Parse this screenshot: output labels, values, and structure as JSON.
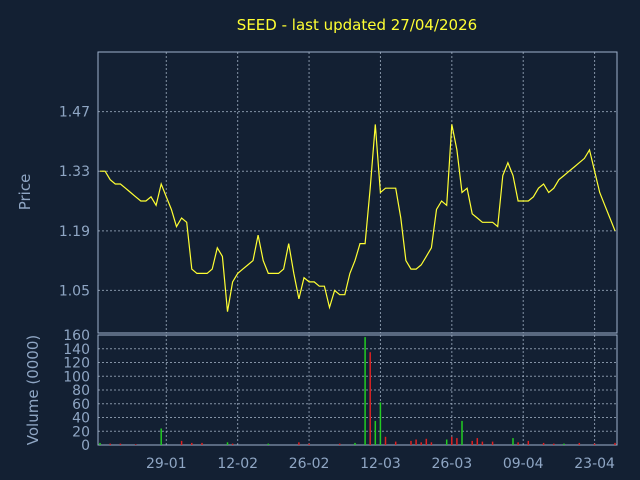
{
  "chart_data": [
    {
      "type": "line",
      "title": "SEED - last updated 27/04/2026",
      "ylabel": "Price",
      "ylim": [
        0.95,
        1.61
      ],
      "yticks": [
        "1.05",
        "1.19",
        "1.33",
        "1.47"
      ],
      "grid": true,
      "line_color": "#ffff33",
      "x": [
        "2026-01-16",
        "2026-01-17",
        "2026-01-18",
        "2026-01-19",
        "2026-01-20",
        "2026-01-21",
        "2026-01-22",
        "2026-01-23",
        "2026-01-24",
        "2026-01-25",
        "2026-01-26",
        "2026-01-27",
        "2026-01-28",
        "2026-01-29",
        "2026-01-30",
        "2026-01-31",
        "2026-02-01",
        "2026-02-02",
        "2026-02-03",
        "2026-02-04",
        "2026-02-05",
        "2026-02-06",
        "2026-02-07",
        "2026-02-08",
        "2026-02-09",
        "2026-02-10",
        "2026-02-11",
        "2026-02-12",
        "2026-02-13",
        "2026-02-14",
        "2026-02-15",
        "2026-02-16",
        "2026-02-17",
        "2026-02-18",
        "2026-02-19",
        "2026-02-20",
        "2026-02-21",
        "2026-02-22",
        "2026-02-23",
        "2026-02-24",
        "2026-02-25",
        "2026-02-26",
        "2026-02-27",
        "2026-02-28",
        "2026-03-01",
        "2026-03-02",
        "2026-03-03",
        "2026-03-04",
        "2026-03-05",
        "2026-03-06",
        "2026-03-07",
        "2026-03-08",
        "2026-03-09",
        "2026-03-10",
        "2026-03-11",
        "2026-03-12",
        "2026-03-13",
        "2026-03-14",
        "2026-03-15",
        "2026-03-16",
        "2026-03-17",
        "2026-03-18",
        "2026-03-19",
        "2026-03-20",
        "2026-03-21",
        "2026-03-22",
        "2026-03-23",
        "2026-03-24",
        "2026-03-25",
        "2026-03-26",
        "2026-03-27",
        "2026-03-28",
        "2026-03-29",
        "2026-03-30",
        "2026-03-31",
        "2026-04-01",
        "2026-04-02",
        "2026-04-03",
        "2026-04-04",
        "2026-04-05",
        "2026-04-06",
        "2026-04-07",
        "2026-04-08",
        "2026-04-09",
        "2026-04-10",
        "2026-04-11",
        "2026-04-12",
        "2026-04-13",
        "2026-04-14",
        "2026-04-15",
        "2026-04-16",
        "2026-04-17",
        "2026-04-18",
        "2026-04-19",
        "2026-04-20",
        "2026-04-21",
        "2026-04-22",
        "2026-04-23",
        "2026-04-24",
        "2026-04-25",
        "2026-04-26",
        "2026-04-27"
      ],
      "y": [
        1.33,
        1.33,
        1.31,
        1.3,
        1.3,
        1.29,
        1.28,
        1.27,
        1.26,
        1.26,
        1.27,
        1.25,
        1.3,
        1.27,
        1.24,
        1.2,
        1.22,
        1.21,
        1.1,
        1.09,
        1.09,
        1.09,
        1.1,
        1.15,
        1.13,
        1.0,
        1.07,
        1.09,
        1.1,
        1.11,
        1.12,
        1.18,
        1.12,
        1.09,
        1.09,
        1.09,
        1.1,
        1.16,
        1.09,
        1.03,
        1.08,
        1.07,
        1.07,
        1.06,
        1.06,
        1.01,
        1.05,
        1.04,
        1.04,
        1.09,
        1.12,
        1.16,
        1.16,
        1.29,
        1.44,
        1.28,
        1.29,
        1.29,
        1.29,
        1.22,
        1.12,
        1.1,
        1.1,
        1.11,
        1.13,
        1.15,
        1.24,
        1.26,
        1.25,
        1.44,
        1.38,
        1.28,
        1.29,
        1.23,
        1.22,
        1.21,
        1.21,
        1.21,
        1.2,
        1.32,
        1.35,
        1.32,
        1.26,
        1.26,
        1.26,
        1.27,
        1.29,
        1.3,
        1.28,
        1.29,
        1.31,
        1.32,
        1.33,
        1.34,
        1.35,
        1.36,
        1.38,
        1.33,
        1.28,
        1.25,
        1.22,
        1.19
      ]
    },
    {
      "type": "bar",
      "ylabel": "Volume (0000)",
      "ylim": [
        0,
        160
      ],
      "yticks": [
        "0",
        "20",
        "40",
        "60",
        "80",
        "100",
        "120",
        "140",
        "160"
      ],
      "grid": true,
      "xticks": [
        "29-01",
        "12-02",
        "26-02",
        "12-03",
        "26-03",
        "09-04",
        "23-04"
      ],
      "xtick_dates": [
        "2026-01-29",
        "2026-02-12",
        "2026-02-26",
        "2026-03-12",
        "2026-03-26",
        "2026-04-09",
        "2026-04-23"
      ],
      "up_color": "#22cc22",
      "down_color": "#dd2222",
      "series": [
        {
          "date": "2026-01-16",
          "value": 3,
          "dir": "up"
        },
        {
          "date": "2026-01-18",
          "value": 2,
          "dir": "down"
        },
        {
          "date": "2026-01-20",
          "value": 2,
          "dir": "down"
        },
        {
          "date": "2026-01-23",
          "value": 1,
          "dir": "down"
        },
        {
          "date": "2026-01-28",
          "value": 24,
          "dir": "up"
        },
        {
          "date": "2026-02-01",
          "value": 6,
          "dir": "down"
        },
        {
          "date": "2026-02-03",
          "value": 3,
          "dir": "down"
        },
        {
          "date": "2026-02-05",
          "value": 3,
          "dir": "down"
        },
        {
          "date": "2026-02-10",
          "value": 4,
          "dir": "up"
        },
        {
          "date": "2026-02-11",
          "value": 2,
          "dir": "down"
        },
        {
          "date": "2026-02-18",
          "value": 2,
          "dir": "up"
        },
        {
          "date": "2026-02-24",
          "value": 4,
          "dir": "down"
        },
        {
          "date": "2026-02-26",
          "value": 2,
          "dir": "down"
        },
        {
          "date": "2026-03-04",
          "value": 2,
          "dir": "down"
        },
        {
          "date": "2026-03-07",
          "value": 3,
          "dir": "up"
        },
        {
          "date": "2026-03-09",
          "value": 157,
          "dir": "up"
        },
        {
          "date": "2026-03-10",
          "value": 135,
          "dir": "down"
        },
        {
          "date": "2026-03-11",
          "value": 35,
          "dir": "up"
        },
        {
          "date": "2026-03-12",
          "value": 62,
          "dir": "up"
        },
        {
          "date": "2026-03-13",
          "value": 12,
          "dir": "down"
        },
        {
          "date": "2026-03-15",
          "value": 5,
          "dir": "down"
        },
        {
          "date": "2026-03-18",
          "value": 6,
          "dir": "down"
        },
        {
          "date": "2026-03-19",
          "value": 8,
          "dir": "down"
        },
        {
          "date": "2026-03-20",
          "value": 4,
          "dir": "down"
        },
        {
          "date": "2026-03-21",
          "value": 9,
          "dir": "down"
        },
        {
          "date": "2026-03-22",
          "value": 4,
          "dir": "down"
        },
        {
          "date": "2026-03-25",
          "value": 8,
          "dir": "up"
        },
        {
          "date": "2026-03-26",
          "value": 12,
          "dir": "down"
        },
        {
          "date": "2026-03-27",
          "value": 10,
          "dir": "down"
        },
        {
          "date": "2026-03-28",
          "value": 35,
          "dir": "up"
        },
        {
          "date": "2026-03-30",
          "value": 6,
          "dir": "down"
        },
        {
          "date": "2026-03-31",
          "value": 10,
          "dir": "down"
        },
        {
          "date": "2026-04-01",
          "value": 5,
          "dir": "down"
        },
        {
          "date": "2026-04-03",
          "value": 5,
          "dir": "down"
        },
        {
          "date": "2026-04-07",
          "value": 10,
          "dir": "up"
        },
        {
          "date": "2026-04-08",
          "value": 4,
          "dir": "down"
        },
        {
          "date": "2026-04-10",
          "value": 6,
          "dir": "down"
        },
        {
          "date": "2026-04-13",
          "value": 3,
          "dir": "down"
        },
        {
          "date": "2026-04-15",
          "value": 2,
          "dir": "down"
        },
        {
          "date": "2026-04-17",
          "value": 2,
          "dir": "up"
        },
        {
          "date": "2026-04-20",
          "value": 3,
          "dir": "down"
        },
        {
          "date": "2026-04-23",
          "value": 2,
          "dir": "down"
        },
        {
          "date": "2026-04-27",
          "value": 3,
          "dir": "down"
        }
      ]
    }
  ]
}
